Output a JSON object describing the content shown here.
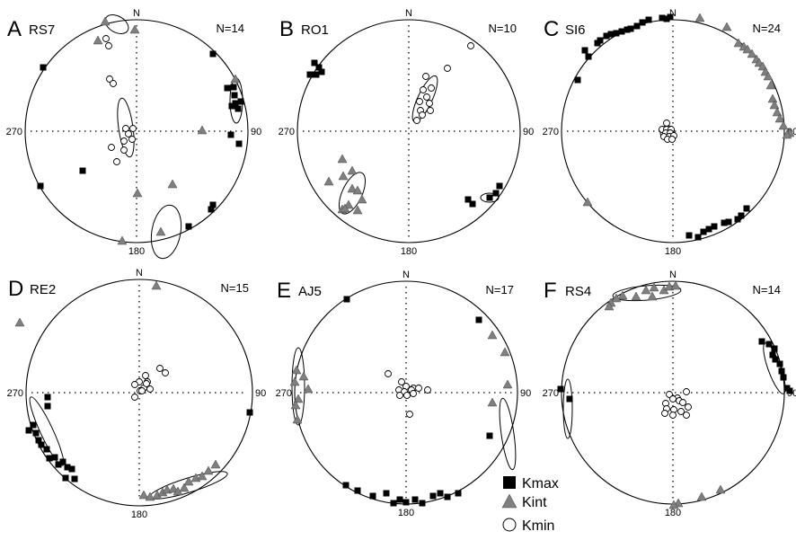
{
  "directions": {
    "north": "N",
    "east": "90",
    "south": "180",
    "west": "270"
  },
  "panels": [
    {
      "letter": "A",
      "code": "RS7",
      "n": "N=14",
      "kmax": [
        [
          48,
          75
        ],
        [
          92,
          190
        ],
        [
          45,
          207
        ],
        [
          237,
          60
        ],
        [
          253,
          98
        ],
        [
          260,
          97
        ],
        [
          261,
          106
        ],
        [
          262,
          115
        ],
        [
          258,
          118
        ],
        [
          265,
          121
        ],
        [
          268,
          113
        ],
        [
          257,
          150
        ],
        [
          266,
          160
        ],
        [
          237,
          228
        ],
        [
          235,
          233
        ],
        [
          210,
          252
        ]
      ],
      "kint": [
        [
          117,
          24
        ],
        [
          109,
          45
        ],
        [
          150,
          33
        ],
        [
          262,
          88
        ],
        [
          225,
          145
        ],
        [
          153,
          215
        ],
        [
          192,
          205
        ],
        [
          179,
          258
        ],
        [
          136,
          268
        ]
      ],
      "kmin": [
        [
          118,
          43
        ],
        [
          121,
          51
        ],
        [
          122,
          88
        ],
        [
          126,
          93
        ],
        [
          140,
          143
        ],
        [
          148,
          143
        ],
        [
          143,
          149
        ],
        [
          147,
          155
        ],
        [
          138,
          157
        ],
        [
          124,
          164
        ],
        [
          138,
          167
        ],
        [
          130,
          180
        ]
      ],
      "ellipses": [
        [
          130,
          27,
          14,
          9,
          30
        ],
        [
          263,
          112,
          7,
          25,
          0
        ],
        [
          140,
          142,
          8,
          33,
          -8
        ],
        [
          185,
          258,
          16,
          30,
          10
        ]
      ]
    },
    {
      "letter": "B",
      "code": "RO1",
      "n": "N=10",
      "kmax": [
        [
          350,
          70
        ],
        [
          355,
          75
        ],
        [
          345,
          83
        ],
        [
          352,
          83
        ],
        [
          358,
          80
        ],
        [
          521,
          222
        ],
        [
          526,
          227
        ],
        [
          545,
          220
        ],
        [
          552,
          215
        ],
        [
          556,
          207
        ]
      ],
      "kint": [
        [
          381,
          177
        ],
        [
          392,
          190
        ],
        [
          382,
          196
        ],
        [
          366,
          202
        ],
        [
          392,
          210
        ],
        [
          398,
          212
        ],
        [
          403,
          222
        ],
        [
          388,
          228
        ],
        [
          381,
          233
        ],
        [
          398,
          234
        ],
        [
          384,
          232
        ]
      ],
      "kmin": [
        [
          524,
          51
        ],
        [
          498,
          76
        ],
        [
          474,
          85
        ],
        [
          471,
          100
        ],
        [
          480,
          98
        ],
        [
          475,
          108
        ],
        [
          467,
          113
        ],
        [
          478,
          115
        ],
        [
          468,
          123
        ],
        [
          479,
          123
        ],
        [
          470,
          128
        ],
        [
          464,
          134
        ]
      ],
      "ellipses": [
        [
          473,
          110,
          8,
          28,
          25
        ],
        [
          392,
          215,
          11,
          25,
          25
        ],
        [
          545,
          220,
          10,
          5,
          0
        ]
      ]
    },
    {
      "letter": "C",
      "code": "SI6",
      "n": "N=24",
      "kmax": [
        [
          651,
          56
        ],
        [
          655,
          63
        ],
        [
          665,
          48
        ],
        [
          668,
          45
        ],
        [
          675,
          40
        ],
        [
          680,
          38
        ],
        [
          686,
          37
        ],
        [
          692,
          35
        ],
        [
          698,
          33
        ],
        [
          702,
          32
        ],
        [
          709,
          29
        ],
        [
          715,
          25
        ],
        [
          722,
          22
        ],
        [
          737,
          20
        ],
        [
          742,
          21
        ],
        [
          746,
          19
        ],
        [
          643,
          89
        ],
        [
          767,
          262
        ],
        [
          777,
          264
        ],
        [
          783,
          258
        ],
        [
          789,
          255
        ],
        [
          795,
          252
        ],
        [
          806,
          248
        ],
        [
          811,
          247
        ],
        [
          821,
          244
        ],
        [
          825,
          240
        ],
        [
          831,
          232
        ]
      ],
      "kint": [
        [
          779,
          20
        ],
        [
          809,
          30
        ],
        [
          822,
          48
        ],
        [
          828,
          52
        ],
        [
          832,
          55
        ],
        [
          837,
          60
        ],
        [
          842,
          66
        ],
        [
          845,
          70
        ],
        [
          849,
          74
        ],
        [
          852,
          80
        ],
        [
          855,
          85
        ],
        [
          858,
          95
        ],
        [
          860,
          110
        ],
        [
          862,
          117
        ],
        [
          865,
          125
        ],
        [
          868,
          132
        ],
        [
          872,
          140
        ],
        [
          879,
          148
        ],
        [
          876,
          150
        ],
        [
          654,
          225
        ]
      ],
      "kmin": [
        [
          742,
          137
        ],
        [
          737,
          144
        ],
        [
          742,
          144
        ],
        [
          747,
          144
        ],
        [
          741,
          148
        ],
        [
          746,
          148
        ],
        [
          739,
          152
        ],
        [
          745,
          152
        ],
        [
          750,
          151
        ],
        [
          743,
          155
        ],
        [
          748,
          155
        ]
      ],
      "ellipses": [
        [
          743,
          148,
          8,
          8,
          0
        ]
      ]
    },
    {
      "letter": "D",
      "code": "RE2",
      "n": "N=15",
      "kmax": [
        [
          53,
          442
        ],
        [
          53,
          452
        ],
        [
          278,
          459
        ],
        [
          37,
          473
        ],
        [
          32,
          479
        ],
        [
          40,
          482
        ],
        [
          43,
          490
        ],
        [
          46,
          495
        ],
        [
          52,
          500
        ],
        [
          55,
          510
        ],
        [
          61,
          509
        ],
        [
          65,
          517
        ],
        [
          70,
          514
        ],
        [
          75,
          520
        ],
        [
          80,
          522
        ],
        [
          73,
          532
        ],
        [
          83,
          533
        ]
      ],
      "kint": [
        [
          174,
          318
        ],
        [
          22,
          359
        ],
        [
          160,
          551
        ],
        [
          167,
          553
        ],
        [
          175,
          551
        ],
        [
          181,
          548
        ],
        [
          186,
          545
        ],
        [
          193,
          544
        ],
        [
          198,
          547
        ],
        [
          205,
          543
        ],
        [
          210,
          536
        ],
        [
          218,
          532
        ],
        [
          225,
          530
        ],
        [
          232,
          524
        ],
        [
          240,
          517
        ]
      ],
      "kmin": [
        [
          178,
          410
        ],
        [
          184,
          415
        ],
        [
          162,
          418
        ],
        [
          164,
          425
        ],
        [
          155,
          425
        ],
        [
          150,
          428
        ],
        [
          160,
          432
        ],
        [
          156,
          435
        ],
        [
          163,
          427
        ],
        [
          167,
          433
        ],
        [
          150,
          442
        ],
        [
          158,
          435
        ]
      ],
      "ellipses": [
        [
          52,
          480,
          7,
          42,
          -25
        ],
        [
          210,
          540,
          45,
          8,
          -17
        ]
      ]
    },
    {
      "letter": "E",
      "code": "AJ5",
      "n": "N=17",
      "kmax": [
        [
          386,
          333
        ],
        [
          533,
          356
        ],
        [
          545,
          485
        ],
        [
          385,
          540
        ],
        [
          398,
          546
        ],
        [
          415,
          552
        ],
        [
          430,
          549
        ],
        [
          438,
          560
        ],
        [
          445,
          556
        ],
        [
          452,
          559
        ],
        [
          462,
          556
        ],
        [
          470,
          560
        ],
        [
          482,
          552
        ],
        [
          490,
          549
        ],
        [
          498,
          553
        ],
        [
          510,
          549
        ]
      ],
      "kint": [
        [
          330,
          412
        ],
        [
          338,
          419
        ],
        [
          328,
          425
        ],
        [
          343,
          433
        ],
        [
          332,
          444
        ],
        [
          329,
          451
        ],
        [
          331,
          467
        ],
        [
          548,
          373
        ],
        [
          562,
          392
        ],
        [
          548,
          448
        ],
        [
          565,
          428
        ]
      ],
      "kmin": [
        [
          432,
          416
        ],
        [
          447,
          425
        ],
        [
          452,
          430
        ],
        [
          460,
          432
        ],
        [
          466,
          432
        ],
        [
          476,
          434
        ],
        [
          444,
          434
        ],
        [
          450,
          436
        ],
        [
          458,
          434
        ],
        [
          445,
          440
        ],
        [
          453,
          440
        ],
        [
          460,
          438
        ],
        [
          456,
          461
        ]
      ],
      "ellipses": [
        [
          332,
          430,
          7,
          43,
          0
        ],
        [
          565,
          483,
          7,
          40,
          -8
        ]
      ]
    },
    {
      "letter": "F",
      "code": "RS4",
      "n": "N=14",
      "kmax": [
        [
          624,
          433
        ],
        [
          634,
          444
        ],
        [
          848,
          380
        ],
        [
          856,
          383
        ],
        [
          862,
          388
        ],
        [
          860,
          395
        ],
        [
          863,
          400
        ],
        [
          868,
          405
        ],
        [
          870,
          413
        ],
        [
          872,
          420
        ],
        [
          879,
          435
        ],
        [
          876,
          432
        ]
      ],
      "kint": [
        [
          719,
          323
        ],
        [
          728,
          320
        ],
        [
          739,
          323
        ],
        [
          745,
          319
        ],
        [
          752,
          318
        ],
        [
          693,
          329
        ],
        [
          686,
          332
        ],
        [
          680,
          337
        ],
        [
          708,
          330
        ],
        [
          726,
          330
        ],
        [
          678,
          341
        ],
        [
          755,
          560
        ],
        [
          750,
          562
        ],
        [
          781,
          553
        ],
        [
          802,
          545
        ]
      ],
      "kmin": [
        [
          745,
          439
        ],
        [
          754,
          443
        ],
        [
          741,
          449
        ],
        [
          749,
          444
        ],
        [
          756,
          446
        ],
        [
          764,
          436
        ],
        [
          760,
          448
        ],
        [
          766,
          453
        ],
        [
          742,
          455
        ],
        [
          750,
          456
        ],
        [
          758,
          458
        ],
        [
          764,
          462
        ],
        [
          740,
          460
        ],
        [
          749,
          462
        ]
      ],
      "ellipses": [
        [
          720,
          326,
          38,
          8,
          -5
        ],
        [
          632,
          455,
          5,
          33,
          0
        ],
        [
          862,
          410,
          7,
          30,
          -20
        ]
      ]
    }
  ],
  "legend": [
    {
      "symbol": "square",
      "label": "Kmax"
    },
    {
      "symbol": "triangle",
      "label": "Kint"
    },
    {
      "symbol": "circle",
      "label": "Kmin"
    }
  ]
}
